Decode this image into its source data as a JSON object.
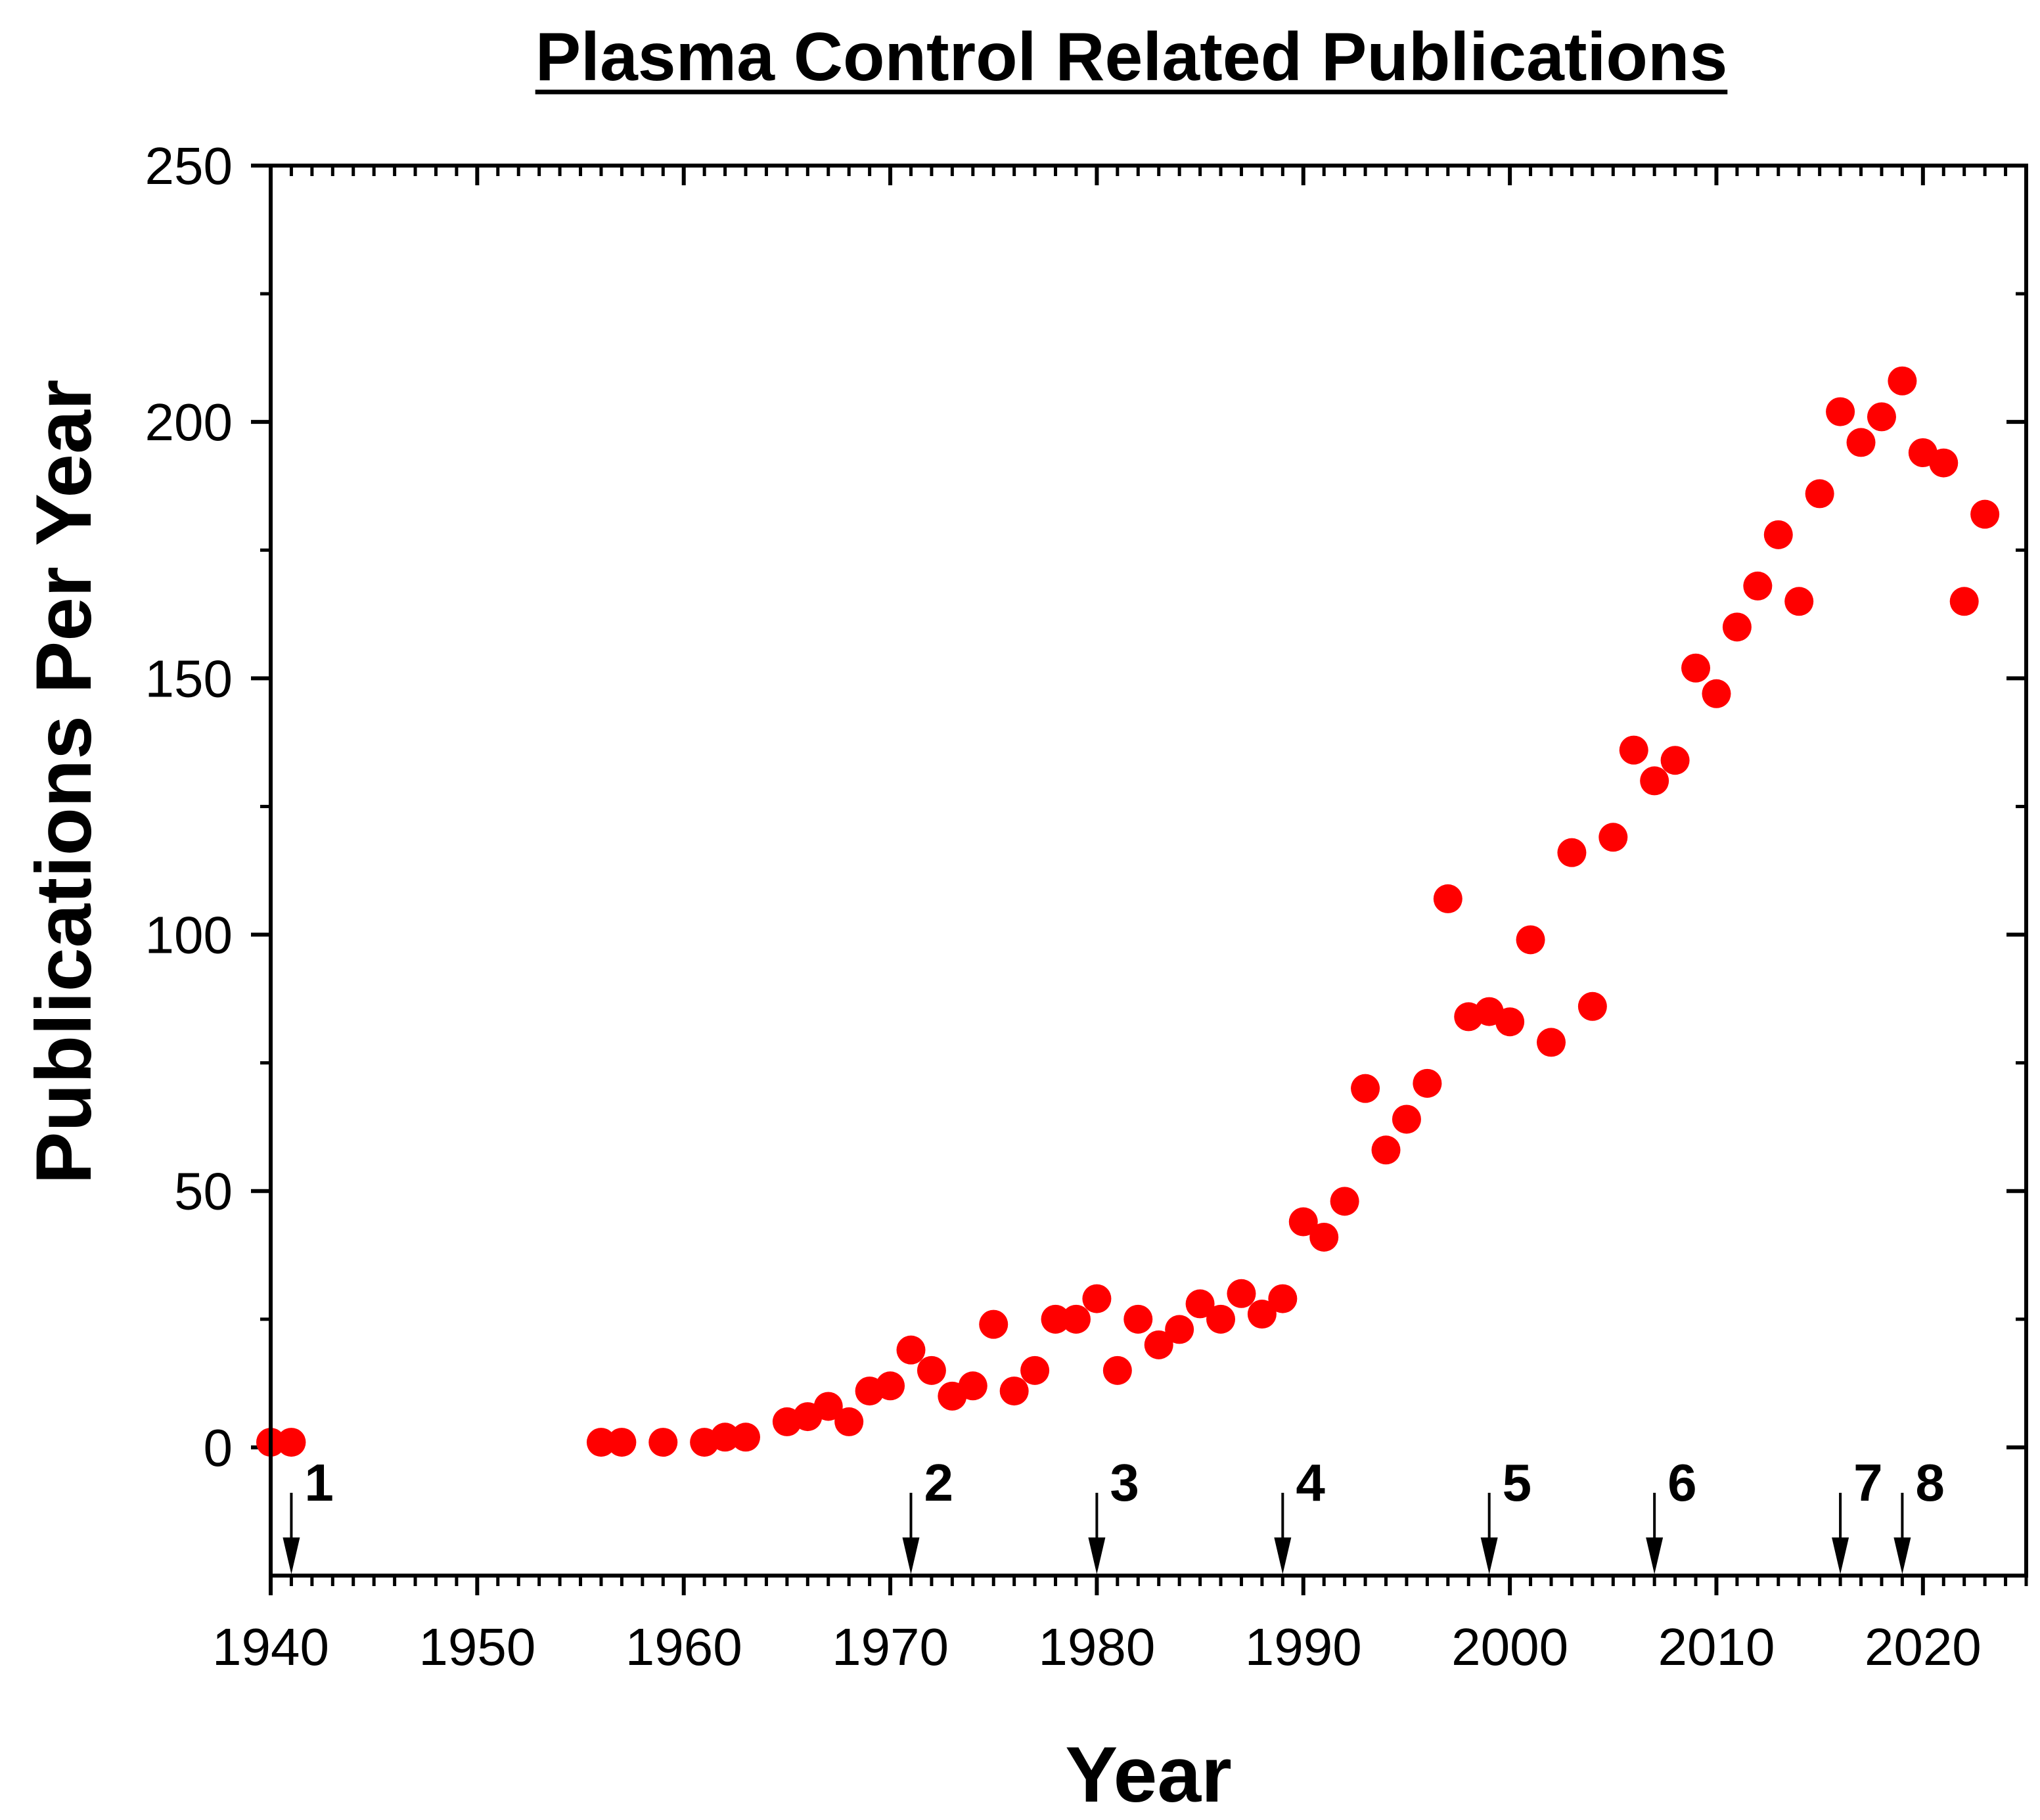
{
  "chart_data": {
    "type": "scatter",
    "title": "Plasma Control Related Publications",
    "xlabel": "Year",
    "ylabel": "Publications Per Year",
    "xlim": [
      1940,
      2025
    ],
    "ylim": [
      -25,
      250
    ],
    "x_ticks": [
      1940,
      1950,
      1960,
      1970,
      1980,
      1990,
      2000,
      2010,
      2020
    ],
    "y_ticks": [
      0,
      50,
      100,
      150,
      200,
      250
    ],
    "x_minor_step": 1,
    "y_minor_step": 25,
    "marker_color": "#ff0000",
    "axis_color": "#000000",
    "grid": false,
    "legend": "none",
    "series": [
      {
        "name": "Publications",
        "x": [
          1940,
          1941,
          1956,
          1957,
          1959,
          1961,
          1962,
          1963,
          1965,
          1966,
          1967,
          1968,
          1969,
          1970,
          1971,
          1972,
          1973,
          1974,
          1975,
          1976,
          1977,
          1978,
          1979,
          1980,
          1981,
          1982,
          1983,
          1984,
          1985,
          1986,
          1987,
          1988,
          1989,
          1990,
          1991,
          1992,
          1993,
          1994,
          1995,
          1996,
          1997,
          1998,
          1999,
          2000,
          2001,
          2002,
          2003,
          2004,
          2005,
          2006,
          2007,
          2008,
          2009,
          2010,
          2011,
          2012,
          2013,
          2014,
          2015,
          2016,
          2017,
          2018,
          2019,
          2020,
          2021,
          2022,
          2023
        ],
        "y": [
          1,
          1,
          1,
          1,
          1,
          1,
          2,
          2,
          5,
          6,
          8,
          5,
          11,
          12,
          19,
          15,
          10,
          12,
          24,
          11,
          15,
          25,
          25,
          29,
          15,
          25,
          20,
          23,
          28,
          25,
          30,
          26,
          29,
          44,
          41,
          48,
          70,
          58,
          64,
          71,
          107,
          84,
          85,
          83,
          99,
          79,
          116,
          86,
          119,
          136,
          130,
          134,
          152,
          147,
          160,
          168,
          178,
          165,
          186,
          202,
          196,
          201,
          208,
          194,
          192,
          165,
          182
        ]
      }
    ],
    "annotations": [
      {
        "label": "1",
        "x": 1941
      },
      {
        "label": "2",
        "x": 1971
      },
      {
        "label": "3",
        "x": 1980
      },
      {
        "label": "4",
        "x": 1989
      },
      {
        "label": "5",
        "x": 1999
      },
      {
        "label": "6",
        "x": 2007
      },
      {
        "label": "7",
        "x": 2016
      },
      {
        "label": "8",
        "x": 2019
      }
    ]
  }
}
